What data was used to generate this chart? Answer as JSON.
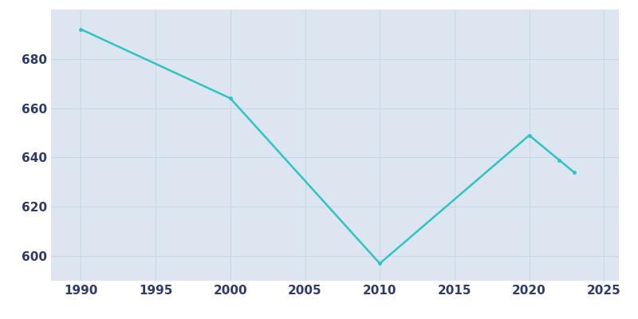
{
  "years": [
    1990,
    2000,
    2010,
    2020,
    2022,
    2023
  ],
  "population": [
    692,
    664,
    597,
    649,
    639,
    634
  ],
  "line_color": "#2EC4C4",
  "axes_background_color": "#DDE6F0",
  "figure_background_color": "#FFFFFF",
  "grid_color": "#C8D6E8",
  "tick_label_color": "#2E3A6E",
  "xlim": [
    1988,
    2026
  ],
  "ylim": [
    590,
    700
  ],
  "yticks": [
    600,
    620,
    640,
    660,
    680
  ],
  "xticks": [
    1990,
    1995,
    2000,
    2005,
    2010,
    2015,
    2020,
    2025
  ],
  "line_width": 1.8,
  "figsize": [
    8.0,
    4.0
  ],
  "dpi": 100
}
